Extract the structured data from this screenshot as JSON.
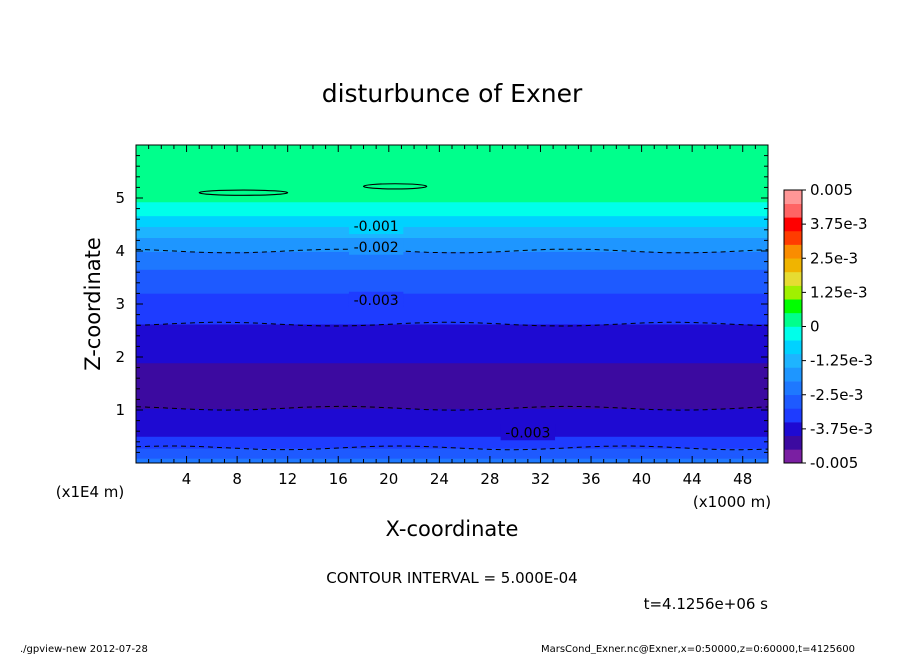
{
  "chart_data": {
    "type": "heatmap",
    "title": "disturbunce of Exner",
    "xlabel": "X-coordinate",
    "ylabel": "Z-coordinate",
    "x_unit": "(x1000 m)",
    "y_unit": "(x1E4 m)",
    "xlim": [
      0,
      50
    ],
    "ylim": [
      0,
      6
    ],
    "x_ticks": [
      4,
      8,
      12,
      16,
      20,
      24,
      28,
      32,
      36,
      40,
      44,
      48
    ],
    "y_ticks": [
      1,
      2,
      3,
      4,
      5
    ],
    "colorbar": {
      "labels": [
        "0.005",
        "3.75e-3",
        "2.5e-3",
        "1.25e-3",
        "0",
        "-1.25e-3",
        "-2.5e-3",
        "-3.75e-3",
        "-0.005"
      ],
      "min": -0.005,
      "max": 0.005
    },
    "contour_labels": [
      {
        "text": "-0.001",
        "x": 19,
        "z": 4.47
      },
      {
        "text": "-0.002",
        "x": 19,
        "z": 4.08
      },
      {
        "text": "-0.003",
        "x": 19,
        "z": 3.08
      },
      {
        "text": "-0.003",
        "x": 31,
        "z": 0.58
      }
    ],
    "profile_z": [
      0,
      0.2,
      0.5,
      0.9,
      1.3,
      1.9,
      2.5,
      3.1,
      3.6,
      3.8,
      4.1,
      4.3,
      4.5,
      4.7,
      5.0,
      6.0
    ],
    "profile_value": [
      -0.0022,
      -0.0028,
      -0.0035,
      -0.0039,
      -0.0042,
      -0.004,
      -0.0036,
      -0.0031,
      -0.0026,
      -0.0022,
      -0.0019,
      -0.0014,
      -0.0009,
      -0.0004,
      0.0001,
      0.0002
    ],
    "contour_interval": 0.0005
  },
  "footer": {
    "contour_interval": "CONTOUR INTERVAL = 5.000E-04",
    "time": "t=4.1256e+06 s",
    "program": "./gpview-new   2012-07-28",
    "source": "MarsCond_Exner.nc@Exner,x=0:50000,z=0:60000,t=4125600"
  }
}
